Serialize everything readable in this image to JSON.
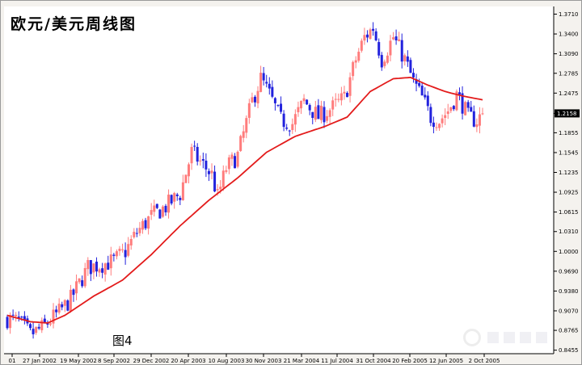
{
  "title": "欧元/美元周线图",
  "figure_label": "图4",
  "colors": {
    "up": "#ff7c7c",
    "down": "#2222dd",
    "ma": "#e31b1b",
    "plot_bg": "#ffffff",
    "axis": "#000000",
    "price_tag_bg": "#000000",
    "price_tag_fg": "#ffffff"
  },
  "chart_data": {
    "type": "candlestick",
    "title": "欧元/美元周线图",
    "x_tick_labels": [
      "01",
      "27 Jan 2002",
      "19 May 2002",
      "8 Sep 2002",
      "29 Dec 2002",
      "20 Apr 2003",
      "10 Aug 2003",
      "30 Nov 2003",
      "21 Mar 2004",
      "11 Jul 2004",
      "31 Oct 2004",
      "20 Feb 2005",
      "12 Jun 2005",
      "2 Oct 2005"
    ],
    "y_ticks": [
      1.371,
      1.34,
      1.309,
      1.2785,
      1.2475,
      1.2158,
      1.1855,
      1.1545,
      1.1235,
      1.0925,
      1.0615,
      1.031,
      1.0,
      0.969,
      0.938,
      0.907,
      0.8765,
      0.8455
    ],
    "y_tick_labels": [
      "1.3710",
      "1.3400",
      "1.3090",
      "1.2785",
      "1.2475",
      "",
      "1.1855",
      "1.1545",
      "1.1235",
      "1.0925",
      "1.0615",
      "1.0310",
      "1.0000",
      "0.9690",
      "0.9380",
      "0.9070",
      "0.8765",
      "0.8455"
    ],
    "ylim": [
      0.84,
      1.383
    ],
    "last_price": 1.2158,
    "last_price_label": "1.2158",
    "anchors": [
      [
        0,
        0.895
      ],
      [
        4,
        0.89
      ],
      [
        8,
        0.87
      ],
      [
        12,
        0.88
      ],
      [
        18,
        0.905
      ],
      [
        22,
        0.925
      ],
      [
        28,
        0.975
      ],
      [
        33,
        0.98
      ],
      [
        37,
        0.985
      ],
      [
        41,
        1.0
      ],
      [
        45,
        1.03
      ],
      [
        50,
        1.055
      ],
      [
        55,
        1.07
      ],
      [
        60,
        1.09
      ],
      [
        64,
        1.155
      ],
      [
        67,
        1.14
      ],
      [
        71,
        1.12
      ],
      [
        73,
        1.085
      ],
      [
        76,
        1.13
      ],
      [
        80,
        1.15
      ],
      [
        85,
        1.235
      ],
      [
        88,
        1.27
      ],
      [
        91,
        1.245
      ],
      [
        95,
        1.205
      ],
      [
        99,
        1.2
      ],
      [
        103,
        1.235
      ],
      [
        108,
        1.21
      ],
      [
        113,
        1.225
      ],
      [
        117,
        1.24
      ],
      [
        121,
        1.3
      ],
      [
        124,
        1.335
      ],
      [
        127,
        1.35
      ],
      [
        130,
        1.3
      ],
      [
        134,
        1.335
      ],
      [
        138,
        1.3
      ],
      [
        141,
        1.265
      ],
      [
        144,
        1.24
      ],
      [
        147,
        1.21
      ],
      [
        150,
        1.205
      ],
      [
        153,
        1.22
      ],
      [
        156,
        1.245
      ],
      [
        158,
        1.23
      ],
      [
        160,
        1.21
      ],
      [
        163,
        1.205
      ],
      [
        165,
        1.2158
      ]
    ],
    "ma_anchors": [
      [
        0,
        0.9
      ],
      [
        8,
        0.89
      ],
      [
        14,
        0.888
      ],
      [
        20,
        0.9
      ],
      [
        30,
        0.93
      ],
      [
        40,
        0.955
      ],
      [
        50,
        0.995
      ],
      [
        60,
        1.04
      ],
      [
        70,
        1.08
      ],
      [
        80,
        1.115
      ],
      [
        90,
        1.155
      ],
      [
        100,
        1.18
      ],
      [
        110,
        1.195
      ],
      [
        118,
        1.21
      ],
      [
        126,
        1.25
      ],
      [
        134,
        1.27
      ],
      [
        140,
        1.272
      ],
      [
        146,
        1.26
      ],
      [
        152,
        1.25
      ],
      [
        158,
        1.243
      ],
      [
        165,
        1.237
      ]
    ]
  }
}
